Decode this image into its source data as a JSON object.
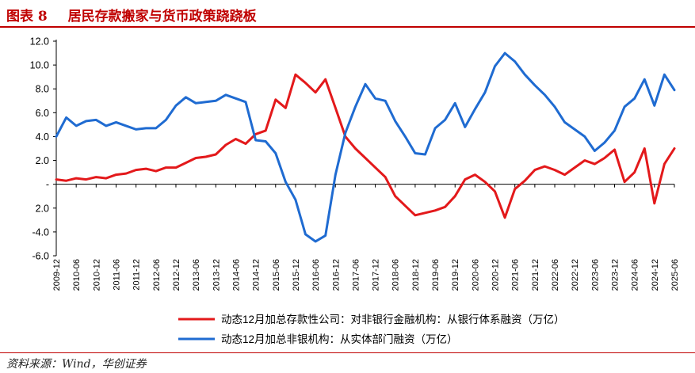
{
  "header": {
    "figure_label": "图表 8",
    "title": "居民存款搬家与货币政策跷跷板"
  },
  "footer": {
    "source": "资料来源：Wind，华创证券"
  },
  "colors": {
    "series_red": "#e3191b",
    "series_blue": "#1f6bd1",
    "title_red": "#c00000"
  },
  "chart_data": {
    "type": "line",
    "title": "",
    "xlabel": "",
    "ylabel": "",
    "ylim": [
      -6.0,
      12.0
    ],
    "yticks": [
      12.0,
      10.0,
      8.0,
      6.0,
      4.0,
      2.0,
      0,
      -2.0,
      -4.0,
      -6.0
    ],
    "ytick_labels": [
      "12.0",
      "10.0",
      "8.0",
      "6.0",
      "4.0",
      "2.0",
      "-",
      "2.0",
      "-4.0",
      "-6.0"
    ],
    "xticks": [
      "2009-12",
      "2010-06",
      "2010-12",
      "2011-06",
      "2011-12",
      "2012-06",
      "2012-12",
      "2013-06",
      "2013-12",
      "2014-06",
      "2014-12",
      "2015-06",
      "2015-12",
      "2016-06",
      "2016-12",
      "2017-06",
      "2017-12",
      "2018-06",
      "2018-12",
      "2019-06",
      "2019-12",
      "2020-06",
      "2020-12",
      "2021-06",
      "2021-12",
      "2022-06",
      "2022-12",
      "2023-06",
      "2023-12",
      "2024-06",
      "2024-12",
      "2025-06"
    ],
    "legend_position": "bottom",
    "x_range": [
      "2009-12",
      "2025-06"
    ],
    "series": [
      {
        "name": "动态12月加总存款性公司：对非银行金融机构：从银行体系融资（万亿）",
        "color": "#e3191b",
        "points": [
          [
            "2009-12",
            0.4
          ],
          [
            "2010-03",
            0.3
          ],
          [
            "2010-06",
            0.5
          ],
          [
            "2010-09",
            0.4
          ],
          [
            "2010-12",
            0.6
          ],
          [
            "2011-03",
            0.5
          ],
          [
            "2011-06",
            0.8
          ],
          [
            "2011-09",
            0.9
          ],
          [
            "2011-12",
            1.2
          ],
          [
            "2012-03",
            1.3
          ],
          [
            "2012-06",
            1.1
          ],
          [
            "2012-09",
            1.4
          ],
          [
            "2012-12",
            1.4
          ],
          [
            "2013-03",
            1.8
          ],
          [
            "2013-06",
            2.2
          ],
          [
            "2013-09",
            2.3
          ],
          [
            "2013-12",
            2.5
          ],
          [
            "2014-03",
            3.3
          ],
          [
            "2014-06",
            3.8
          ],
          [
            "2014-09",
            3.4
          ],
          [
            "2014-12",
            4.2
          ],
          [
            "2015-03",
            4.5
          ],
          [
            "2015-06",
            7.1
          ],
          [
            "2015-09",
            6.4
          ],
          [
            "2015-12",
            9.2
          ],
          [
            "2016-03",
            8.5
          ],
          [
            "2016-06",
            7.7
          ],
          [
            "2016-09",
            8.8
          ],
          [
            "2016-12",
            6.4
          ],
          [
            "2017-03",
            4.0
          ],
          [
            "2017-06",
            3.0
          ],
          [
            "2017-09",
            2.2
          ],
          [
            "2017-12",
            1.4
          ],
          [
            "2018-03",
            0.6
          ],
          [
            "2018-06",
            -1.0
          ],
          [
            "2018-09",
            -1.8
          ],
          [
            "2018-12",
            -2.6
          ],
          [
            "2019-03",
            -2.4
          ],
          [
            "2019-06",
            -2.2
          ],
          [
            "2019-09",
            -1.9
          ],
          [
            "2019-12",
            -1.0
          ],
          [
            "2020-03",
            0.4
          ],
          [
            "2020-06",
            0.8
          ],
          [
            "2020-09",
            0.2
          ],
          [
            "2020-12",
            -0.6
          ],
          [
            "2021-03",
            -2.8
          ],
          [
            "2021-06",
            -0.4
          ],
          [
            "2021-09",
            0.3
          ],
          [
            "2021-12",
            1.2
          ],
          [
            "2022-03",
            1.5
          ],
          [
            "2022-06",
            1.2
          ],
          [
            "2022-09",
            0.8
          ],
          [
            "2022-12",
            1.4
          ],
          [
            "2023-03",
            2.0
          ],
          [
            "2023-06",
            1.7
          ],
          [
            "2023-09",
            2.2
          ],
          [
            "2023-12",
            2.9
          ],
          [
            "2024-03",
            0.2
          ],
          [
            "2024-06",
            1.0
          ],
          [
            "2024-09",
            3.0
          ],
          [
            "2024-12",
            -1.6
          ],
          [
            "2025-03",
            1.7
          ],
          [
            "2025-06",
            3.0
          ]
        ]
      },
      {
        "name": "动态12月加总非银机构：从实体部门融资（万亿）",
        "color": "#1f6bd1",
        "points": [
          [
            "2009-12",
            4.0
          ],
          [
            "2010-03",
            5.6
          ],
          [
            "2010-06",
            4.9
          ],
          [
            "2010-09",
            5.3
          ],
          [
            "2010-12",
            5.4
          ],
          [
            "2011-03",
            4.9
          ],
          [
            "2011-06",
            5.2
          ],
          [
            "2011-09",
            4.9
          ],
          [
            "2011-12",
            4.6
          ],
          [
            "2012-03",
            4.7
          ],
          [
            "2012-06",
            4.7
          ],
          [
            "2012-09",
            5.4
          ],
          [
            "2012-12",
            6.6
          ],
          [
            "2013-03",
            7.3
          ],
          [
            "2013-06",
            6.8
          ],
          [
            "2013-09",
            6.9
          ],
          [
            "2013-12",
            7.0
          ],
          [
            "2014-03",
            7.5
          ],
          [
            "2014-06",
            7.2
          ],
          [
            "2014-09",
            6.9
          ],
          [
            "2014-12",
            3.7
          ],
          [
            "2015-03",
            3.6
          ],
          [
            "2015-06",
            2.6
          ],
          [
            "2015-09",
            0.2
          ],
          [
            "2015-12",
            -1.3
          ],
          [
            "2016-03",
            -4.2
          ],
          [
            "2016-06",
            -4.8
          ],
          [
            "2016-09",
            -4.3
          ],
          [
            "2016-12",
            0.8
          ],
          [
            "2017-03",
            4.3
          ],
          [
            "2017-06",
            6.5
          ],
          [
            "2017-09",
            8.4
          ],
          [
            "2017-12",
            7.2
          ],
          [
            "2018-03",
            7.0
          ],
          [
            "2018-06",
            5.3
          ],
          [
            "2018-09",
            4.0
          ],
          [
            "2018-12",
            2.6
          ],
          [
            "2019-03",
            2.5
          ],
          [
            "2019-06",
            4.7
          ],
          [
            "2019-09",
            5.4
          ],
          [
            "2019-12",
            6.8
          ],
          [
            "2020-03",
            4.8
          ],
          [
            "2020-06",
            6.3
          ],
          [
            "2020-09",
            7.7
          ],
          [
            "2020-12",
            9.9
          ],
          [
            "2021-03",
            11.0
          ],
          [
            "2021-06",
            10.3
          ],
          [
            "2021-09",
            9.2
          ],
          [
            "2021-12",
            8.3
          ],
          [
            "2022-03",
            7.5
          ],
          [
            "2022-06",
            6.5
          ],
          [
            "2022-09",
            5.2
          ],
          [
            "2022-12",
            4.6
          ],
          [
            "2023-03",
            4.0
          ],
          [
            "2023-06",
            2.8
          ],
          [
            "2023-09",
            3.5
          ],
          [
            "2023-12",
            4.5
          ],
          [
            "2024-03",
            6.5
          ],
          [
            "2024-06",
            7.2
          ],
          [
            "2024-09",
            8.8
          ],
          [
            "2024-12",
            6.6
          ],
          [
            "2025-03",
            9.2
          ],
          [
            "2025-06",
            7.9
          ]
        ]
      }
    ]
  }
}
